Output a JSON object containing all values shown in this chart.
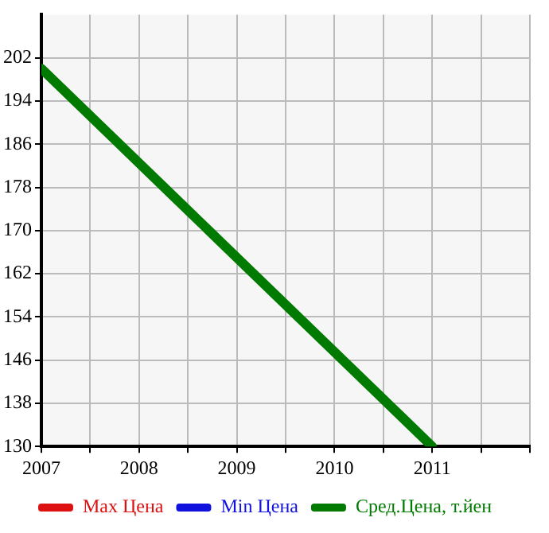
{
  "chart_data": {
    "type": "line",
    "x": [
      2007,
      2011
    ],
    "series": [
      {
        "name": "Max Цена",
        "color": "#dd1111",
        "values": [
          null,
          null
        ]
      },
      {
        "name": "Min Цена",
        "color": "#1111dd",
        "values": [
          null,
          null
        ]
      },
      {
        "name": "Сред.Цена, т.йен",
        "color": "#007a00",
        "values": [
          200,
          130
        ]
      }
    ],
    "xlim": [
      2007,
      2012
    ],
    "xticks": [
      2007,
      {
        "value": 2007.5,
        "label": null
      },
      2008,
      {
        "value": 2008.5,
        "label": null
      },
      2009,
      {
        "value": 2009.5,
        "label": null
      },
      2010,
      {
        "value": 2010.5,
        "label": null
      },
      2011,
      {
        "value": 2011.5,
        "label": null
      },
      {
        "value": 2012,
        "label": null
      }
    ],
    "ylim": [
      130,
      210
    ],
    "yticks": [
      130,
      138,
      146,
      154,
      162,
      170,
      178,
      186,
      194,
      202
    ],
    "grid": true,
    "legend": "bottom",
    "marker": "none",
    "line_style": "solid"
  }
}
